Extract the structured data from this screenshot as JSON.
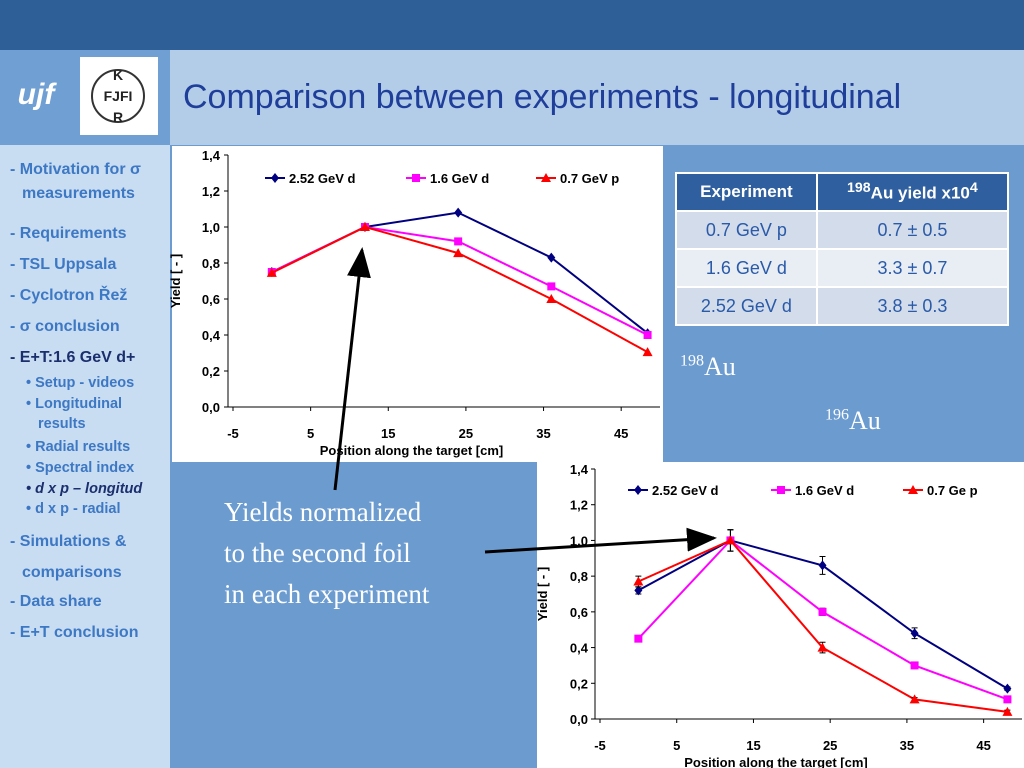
{
  "header": {
    "title": "Comparison between experiments - longitudinal",
    "logos": [
      "ujf",
      "K",
      "FJFI",
      "R"
    ]
  },
  "sidebar": [
    "- Motivation for σ measurements",
    "- Requirements",
    "- TSL Uppsala",
    "- Cyclotron Řež",
    "- σ conclusion",
    "- E+T:1.6 GeV d+",
    "• Setup - videos",
    "• Longitudinal results",
    "• Radial results",
    "• Spectral index",
    "• d x p – longitud",
    "• d x p - radial",
    "- Simulations & comparisons",
    "- Data share",
    "- E+T conclusion"
  ],
  "table": {
    "header": [
      "Experiment",
      {
        "sup": "198",
        "text": "Au yield x10",
        "exp": "4"
      }
    ],
    "rows": [
      [
        "0.7 GeV p",
        "0.7 ± 0.5"
      ],
      [
        "1.6 GeV d",
        "3.3 ± 0.7"
      ],
      [
        "2.52 GeV d",
        "3.8 ± 0.3"
      ]
    ]
  },
  "isotopes": [
    {
      "mass": "198",
      "symbol": "Au"
    },
    {
      "mass": "196",
      "symbol": "Au"
    }
  ],
  "annotation": [
    "Yields normalized",
    "to the second foil",
    "in each experiment"
  ],
  "chart_data": [
    {
      "type": "line",
      "xlabel": "Position along the target [cm]",
      "ylabel": "Yield [ - ]",
      "xlim": [
        -5,
        50
      ],
      "xticks": [
        -5,
        5,
        15,
        25,
        35,
        45
      ],
      "ylim": [
        0,
        1.4
      ],
      "yticks": [
        {
          "value": 0,
          "label": "0,0"
        },
        {
          "value": 0.2,
          "label": "0,2"
        },
        {
          "value": 0.4,
          "label": "0,4"
        },
        {
          "value": 0.6,
          "label": "0,6"
        },
        {
          "value": 0.8,
          "label": "0,8"
        },
        {
          "value": 1.0,
          "label": "1,0"
        },
        {
          "value": 1.2,
          "label": "1,2"
        },
        {
          "value": 1.4,
          "label": "1,4"
        }
      ],
      "x": [
        0,
        12,
        24,
        36,
        48.4
      ],
      "legend": "top",
      "series": [
        {
          "name": "2.52 GeV d",
          "color": "#000080",
          "marker": "diamond",
          "values": [
            0.75,
            1.0,
            1.08,
            0.83,
            0.41
          ]
        },
        {
          "name": "1.6 GeV d",
          "color": "#ff00ff",
          "marker": "square",
          "values": [
            0.75,
            1.0,
            0.92,
            0.67,
            0.4
          ]
        },
        {
          "name": "0.7 GeV p",
          "color": "#ff0000",
          "marker": "triangle",
          "values": [
            0.745,
            1.0,
            0.855,
            0.6,
            0.305
          ]
        }
      ]
    },
    {
      "type": "line",
      "xlabel": "Position along the target [cm]",
      "ylabel": "Yield [ - ]",
      "xlim": [
        -5,
        50
      ],
      "xticks": [
        -5,
        5,
        15,
        25,
        35,
        45
      ],
      "ylim": [
        0,
        1.4
      ],
      "yticks": [
        {
          "value": 0,
          "label": "0,0"
        },
        {
          "value": 0.2,
          "label": "0,2"
        },
        {
          "value": 0.4,
          "label": "0,4"
        },
        {
          "value": 0.6,
          "label": "0,6"
        },
        {
          "value": 0.8,
          "label": "0,8"
        },
        {
          "value": 1.0,
          "label": "1,0"
        },
        {
          "value": 1.2,
          "label": "1,2"
        },
        {
          "value": 1.4,
          "label": "1,4"
        }
      ],
      "x": [
        0,
        12,
        24,
        36,
        48.1
      ],
      "legend": "top",
      "series": [
        {
          "name": "2.52 GeV d",
          "color": "#000080",
          "marker": "diamond",
          "values": [
            0.72,
            1.0,
            0.86,
            0.48,
            0.17
          ],
          "errors": [
            0.02,
            0.06,
            0.05,
            0.03,
            0.01
          ]
        },
        {
          "name": "1.6 GeV d",
          "color": "#ff00ff",
          "marker": "square",
          "values": [
            0.45,
            1.0,
            0.6,
            0.3,
            0.11
          ],
          "errors": [
            0.01,
            0.06,
            0.02,
            0.01,
            0.01
          ]
        },
        {
          "name": "0.7 Ge p",
          "color": "#ff0000",
          "marker": "triangle",
          "values": [
            0.77,
            1.0,
            0.4,
            0.11,
            0.04
          ],
          "errors": [
            0.03,
            0.06,
            0.03,
            0.01,
            0.01
          ]
        }
      ]
    }
  ]
}
